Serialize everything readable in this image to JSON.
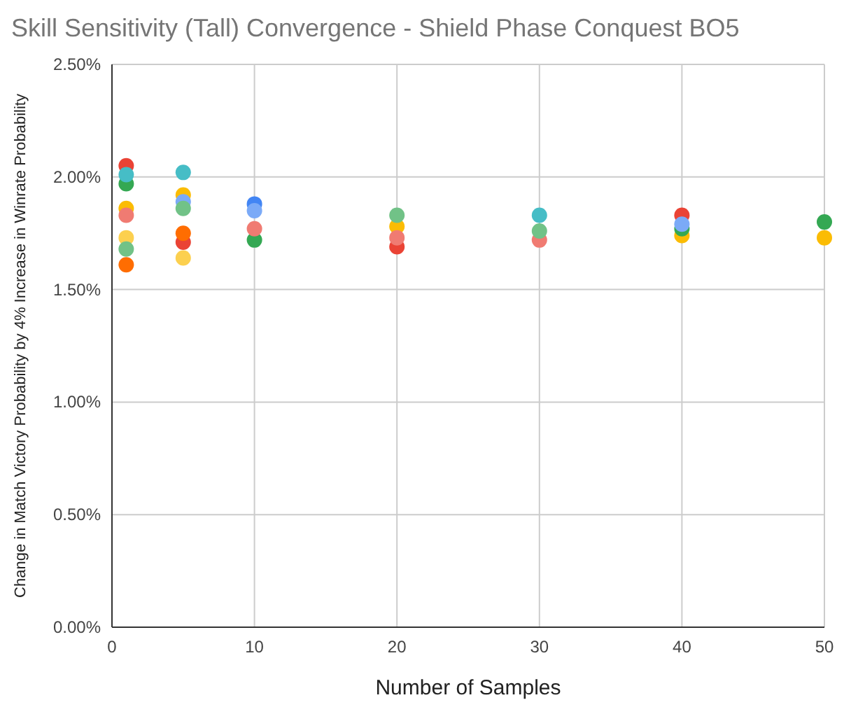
{
  "chart_data": {
    "type": "scatter",
    "title": "Skill Sensitivity (Tall) Convergence - Shield Phase Conquest BO5",
    "xlabel": "Number of Samples",
    "ylabel": "Change in Match Victory Probability by 4% Increase in Winrate Probability",
    "x": [
      1,
      5,
      10,
      20,
      30,
      40,
      50
    ],
    "xlim": [
      0,
      50
    ],
    "xticks": [
      0,
      10,
      20,
      30,
      40,
      50
    ],
    "ylim": [
      0,
      2.5
    ],
    "yticks": [
      {
        "value": 0,
        "label": "0.00%"
      },
      {
        "value": 0.5,
        "label": "0.50%"
      },
      {
        "value": 1,
        "label": "1.00%"
      },
      {
        "value": 1.5,
        "label": "1.50%"
      },
      {
        "value": 2,
        "label": "2.00%"
      },
      {
        "value": 2.5,
        "label": "2.50%"
      }
    ],
    "grid": true,
    "marker": "circle",
    "series": [
      {
        "color": "#4285f4",
        "values": [
          null,
          null,
          1.88,
          null,
          null,
          null,
          null
        ]
      },
      {
        "color": "#ea4335",
        "values": [
          2.05,
          1.71,
          null,
          1.69,
          null,
          1.83,
          null
        ]
      },
      {
        "color": "#fbbc04",
        "values": [
          1.86,
          1.92,
          null,
          1.78,
          null,
          1.74,
          1.73
        ]
      },
      {
        "color": "#34a853",
        "values": [
          1.97,
          null,
          1.72,
          null,
          null,
          1.77,
          1.8
        ]
      },
      {
        "color": "#ff6d01",
        "values": [
          1.61,
          1.75,
          null,
          null,
          null,
          null,
          null
        ]
      },
      {
        "color": "#46bdc6",
        "values": [
          2.01,
          2.02,
          null,
          null,
          1.83,
          null,
          null
        ]
      },
      {
        "color": "#7baaf7",
        "values": [
          null,
          1.89,
          1.85,
          null,
          null,
          1.79,
          null
        ]
      },
      {
        "color": "#f07b72",
        "values": [
          1.83,
          null,
          1.77,
          1.73,
          1.72,
          null,
          null
        ]
      },
      {
        "color": "#fcd04f",
        "values": [
          1.73,
          1.64,
          null,
          null,
          null,
          null,
          null
        ]
      },
      {
        "color": "#71c287",
        "values": [
          1.68,
          1.86,
          null,
          1.83,
          1.76,
          null,
          null
        ]
      }
    ]
  }
}
